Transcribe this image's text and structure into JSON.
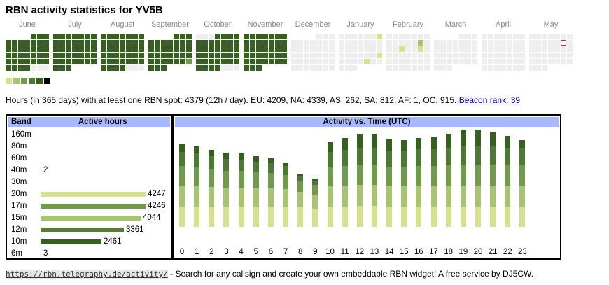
{
  "title": "RBN activity statistics for YV5B",
  "months": [
    "June",
    "July",
    "August",
    "September",
    "October",
    "November",
    "December",
    "January",
    "February",
    "March",
    "April",
    "May"
  ],
  "colors": {
    "empty": "#eeeeee",
    "level1": "#d6e28b",
    "level2": "#a6c56e",
    "level3": "#6f9b4a",
    "level4": "#4c7a34",
    "level5": "#36601f",
    "level6": "#000000",
    "today_outline": "#d12a2a",
    "header_bg": "#a7b8fb",
    "link": "#0000cc"
  },
  "legend_levels": [
    "#d6e28b",
    "#a6c56e",
    "#6f9b4a",
    "#4c7a34",
    "#36601f",
    "#000000"
  ],
  "summary": {
    "text": "Hours (in 365 days) with at least one RBN spot: 4379 (12h / day). EU: 4209, NA: 4339, AS: 262, SA: 812, AF: 1, OC: 915.",
    "rank_link": "Beacon rank: 39"
  },
  "band_table": {
    "header_band": "Band",
    "header_active": "Active hours",
    "rows": [
      {
        "band": "160m",
        "hours": "",
        "value": 0,
        "color": "#d6e28b"
      },
      {
        "band": "80m",
        "hours": "",
        "value": 0,
        "color": "#d6e28b"
      },
      {
        "band": "60m",
        "hours": "",
        "value": 0,
        "color": "#d6e28b"
      },
      {
        "band": "40m",
        "hours": "2",
        "value": 2,
        "color": "#d6e28b"
      },
      {
        "band": "30m",
        "hours": "",
        "value": 0,
        "color": "#d6e28b"
      },
      {
        "band": "20m",
        "hours": "4247",
        "value": 4247,
        "color": "#d6e28b"
      },
      {
        "band": "17m",
        "hours": "4246",
        "value": 4246,
        "color": "#6f9b4a"
      },
      {
        "band": "15m",
        "hours": "4044",
        "value": 4044,
        "color": "#a6c56e"
      },
      {
        "band": "12m",
        "hours": "3361",
        "value": 3361,
        "color": "#5a7a3a"
      },
      {
        "band": "10m",
        "hours": "2461",
        "value": 2461,
        "color": "#36601f"
      },
      {
        "band": "6m",
        "hours": "3",
        "value": 3,
        "color": "#d6e28b"
      }
    ]
  },
  "chart_data": {
    "type": "bar",
    "title": "Activity vs. Time (UTC)",
    "categories": [
      "0",
      "1",
      "2",
      "3",
      "4",
      "5",
      "6",
      "7",
      "8",
      "9",
      "10",
      "11",
      "12",
      "13",
      "14",
      "15",
      "16",
      "17",
      "18",
      "19",
      "20",
      "21",
      "22",
      "23"
    ],
    "series": [
      {
        "name": "20m",
        "values": [
          34,
          34,
          34,
          34,
          34,
          34,
          34,
          34,
          33,
          31,
          34,
          34,
          35,
          35,
          34,
          34,
          34,
          34,
          34,
          34,
          34,
          34,
          34,
          34
        ]
      },
      {
        "name": "17m",
        "values": [
          35,
          34,
          33,
          32,
          32,
          31,
          30,
          29,
          26,
          24,
          34,
          35,
          35,
          35,
          34,
          34,
          35,
          35,
          35,
          35,
          35,
          35,
          35,
          35
        ]
      },
      {
        "name": "15m",
        "values": [
          33,
          32,
          30,
          28,
          28,
          27,
          26,
          23,
          18,
          17,
          32,
          33,
          34,
          34,
          33,
          33,
          33,
          33,
          34,
          35,
          35,
          35,
          34,
          34
        ]
      },
      {
        "name": "12m",
        "values": [
          24,
          23,
          21,
          20,
          19,
          18,
          17,
          15,
          9,
          7,
          26,
          27,
          28,
          28,
          27,
          27,
          28,
          28,
          29,
          30,
          30,
          30,
          29,
          28
        ]
      },
      {
        "name": "10m",
        "values": [
          13,
          12,
          11,
          11,
          10,
          9,
          8,
          5,
          3,
          3,
          16,
          20,
          22,
          22,
          20,
          18,
          19,
          20,
          24,
          28,
          28,
          25,
          20,
          14
        ]
      }
    ],
    "series_colors": [
      "#d6e28b",
      "#a6c56e",
      "#6f9b4a",
      "#4c7a34",
      "#36601f"
    ],
    "ylim": [
      0,
      160
    ]
  },
  "footer": {
    "url": "https://rbn.telegraphy.de/activity/",
    "text": " - Search for any callsign and create your own embeddable RBN widget! A free service by DJ5CW."
  }
}
